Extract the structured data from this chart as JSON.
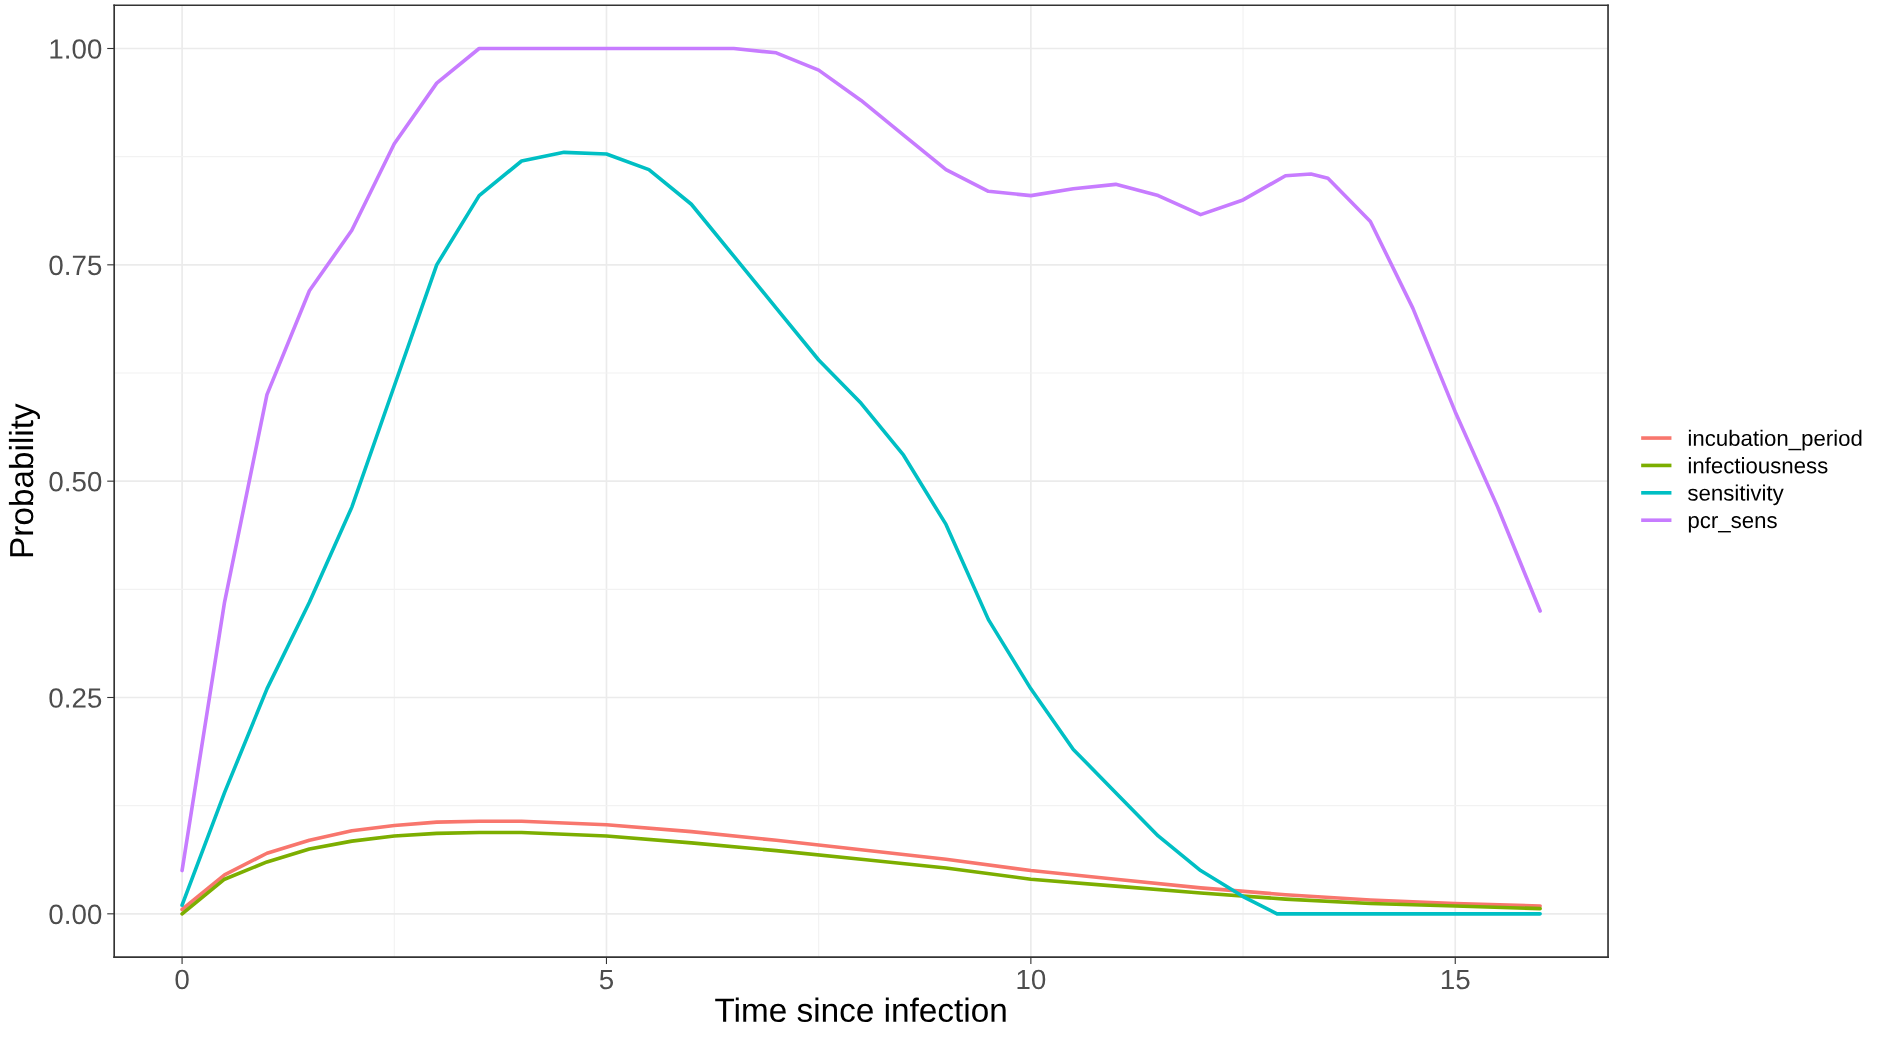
{
  "chart_data": {
    "type": "line",
    "xlabel": "Time since infection",
    "ylabel": "Probability",
    "xlim": [
      -0.8,
      16.8
    ],
    "ylim": [
      -0.05,
      1.05
    ],
    "xticks": [
      0,
      5,
      10,
      15
    ],
    "yticks": [
      {
        "value": 0,
        "label": "0.00"
      },
      {
        "value": 0.25,
        "label": "0.25"
      },
      {
        "value": 0.5,
        "label": "0.50"
      },
      {
        "value": 0.75,
        "label": "0.75"
      },
      {
        "value": 1,
        "label": "1.00"
      }
    ],
    "grid": true,
    "legend": "right",
    "line_style": "solid",
    "marker": "none",
    "series": [
      {
        "name": "incubation_period",
        "color": "#F8766D",
        "x": [
          0,
          0.5,
          1,
          1.5,
          2,
          2.5,
          3,
          3.5,
          4,
          5,
          6,
          7,
          8,
          9,
          10,
          11,
          12,
          13,
          14,
          15,
          16
        ],
        "values": [
          0.005,
          0.045,
          0.07,
          0.085,
          0.096,
          0.102,
          0.106,
          0.107,
          0.107,
          0.103,
          0.095,
          0.085,
          0.074,
          0.063,
          0.05,
          0.04,
          0.03,
          0.022,
          0.016,
          0.012,
          0.009
        ]
      },
      {
        "name": "infectiousness",
        "color": "#7CAE00",
        "x": [
          0,
          0.5,
          1,
          1.5,
          2,
          2.5,
          3,
          3.5,
          4,
          5,
          6,
          7,
          8,
          9,
          10,
          11,
          12,
          13,
          14,
          15,
          16
        ],
        "values": [
          0.0,
          0.04,
          0.06,
          0.075,
          0.084,
          0.09,
          0.093,
          0.094,
          0.094,
          0.09,
          0.082,
          0.073,
          0.063,
          0.053,
          0.04,
          0.032,
          0.024,
          0.017,
          0.012,
          0.009,
          0.006
        ]
      },
      {
        "name": "sensitivity",
        "color": "#00BFC4",
        "x": [
          0,
          0.5,
          1,
          1.5,
          2,
          2.5,
          3,
          3.5,
          4,
          4.5,
          5,
          5.5,
          6,
          6.5,
          7,
          7.5,
          8,
          8.5,
          9,
          9.5,
          10,
          10.5,
          11,
          11.5,
          12,
          12.5,
          12.9,
          16
        ],
        "values": [
          0.01,
          0.14,
          0.26,
          0.36,
          0.47,
          0.61,
          0.75,
          0.83,
          0.87,
          0.88,
          0.878,
          0.86,
          0.82,
          0.76,
          0.7,
          0.64,
          0.59,
          0.53,
          0.45,
          0.34,
          0.26,
          0.19,
          0.14,
          0.09,
          0.05,
          0.02,
          0.0,
          0.0
        ]
      },
      {
        "name": "pcr_sens",
        "color": "#C77CFF",
        "x": [
          0,
          0.5,
          1,
          1.5,
          2,
          2.5,
          3,
          3.5,
          4,
          5,
          6,
          6.5,
          7,
          7.5,
          8,
          8.5,
          9,
          9.5,
          10,
          10.5,
          11,
          11.5,
          12,
          12.5,
          13,
          13.3,
          13.5,
          14,
          14.5,
          15,
          15.5,
          16
        ],
        "values": [
          0.05,
          0.36,
          0.6,
          0.72,
          0.79,
          0.89,
          0.96,
          1.0,
          1.0,
          1.0,
          1.0,
          1.0,
          0.995,
          0.975,
          0.94,
          0.9,
          0.86,
          0.835,
          0.83,
          0.838,
          0.843,
          0.83,
          0.808,
          0.825,
          0.853,
          0.855,
          0.85,
          0.8,
          0.7,
          0.58,
          0.47,
          0.35
        ]
      }
    ]
  }
}
